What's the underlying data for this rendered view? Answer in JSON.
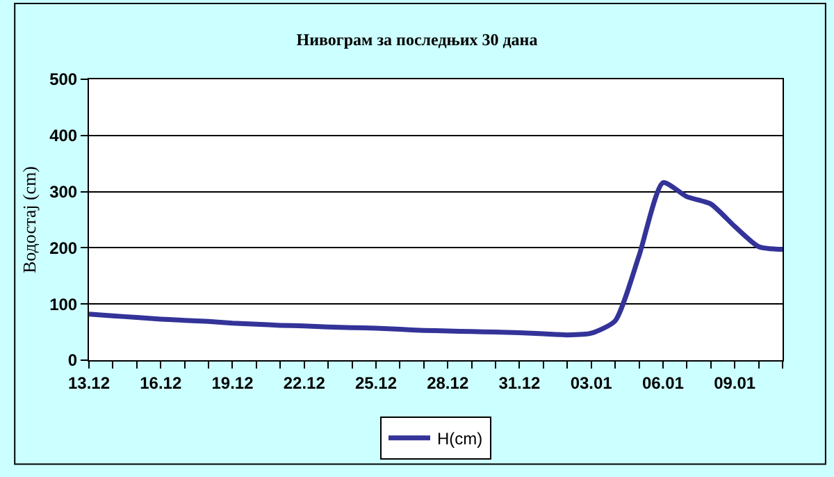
{
  "chart_data": {
    "type": "line",
    "title": "Нивограм за последњих 30 дана",
    "ylabel": "Водостај (cm)",
    "categories": [
      "13.12",
      null,
      null,
      "16.12",
      null,
      null,
      "19.12",
      null,
      null,
      "22.12",
      null,
      null,
      "25.12",
      null,
      null,
      "28.12",
      null,
      null,
      "31.12",
      null,
      null,
      "03.01",
      null,
      null,
      "06.01",
      null,
      null,
      "09.01",
      null,
      null
    ],
    "series": [
      {
        "name": "H(cm)",
        "color": "#333399",
        "values": [
          82,
          79,
          76,
          73,
          71,
          69,
          66,
          64,
          62,
          61,
          59,
          58,
          57,
          55,
          53,
          52,
          51,
          50,
          49,
          47,
          45,
          48,
          70,
          186,
          316,
          291,
          278,
          238,
          202,
          197
        ]
      }
    ],
    "ylim": [
      0,
      500
    ],
    "yticks": [
      0,
      100,
      200,
      300,
      400,
      500
    ],
    "grid": "y",
    "legend": "bottom",
    "marker": "none",
    "line_style": "solid"
  }
}
